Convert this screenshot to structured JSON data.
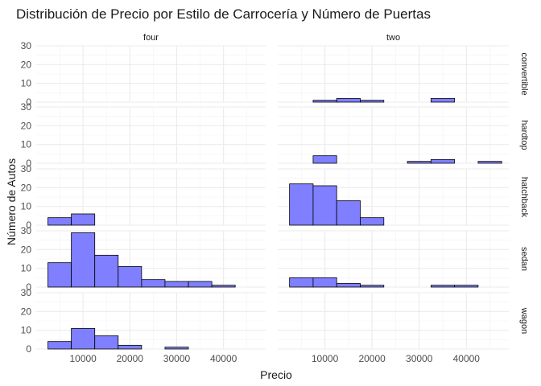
{
  "chart_data": {
    "type": "bar",
    "title": "Distribución de Precio por Estilo de Carrocería y Número de Puertas",
    "xlabel": "Precio",
    "ylabel": "Número de Autos",
    "column_facets": [
      "four",
      "two"
    ],
    "row_facets": [
      "convertible",
      "hardtop",
      "hatchback",
      "sedan",
      "wagon"
    ],
    "xlim": [
      0,
      49000
    ],
    "ylim": [
      0,
      30
    ],
    "x_ticks": [
      10000,
      20000,
      30000,
      40000
    ],
    "x_tick_labels": [
      "10000",
      "20000",
      "30000",
      "40000"
    ],
    "y_ticks": [
      0,
      10,
      20,
      30
    ],
    "y_tick_labels": [
      "0",
      "10",
      "20",
      "30"
    ],
    "bin_edges": [
      2500,
      7500,
      12500,
      17500,
      22500,
      27500,
      32500,
      37500,
      42500,
      47500
    ],
    "grid": true,
    "bar_fill": "#7f7fff",
    "bar_stroke": "#000000",
    "panels": [
      {
        "doors": "four",
        "body_style": "convertible",
        "counts": [
          0,
          0,
          0,
          0,
          0,
          0,
          0,
          0,
          0
        ]
      },
      {
        "doors": "two",
        "body_style": "convertible",
        "counts": [
          0,
          1,
          2,
          1,
          0,
          0,
          2,
          0,
          0
        ]
      },
      {
        "doors": "four",
        "body_style": "hardtop",
        "counts": [
          0,
          0,
          0,
          0,
          0,
          0,
          0,
          0,
          0
        ]
      },
      {
        "doors": "two",
        "body_style": "hardtop",
        "counts": [
          0,
          4,
          0,
          0,
          0,
          1,
          2,
          0,
          1
        ]
      },
      {
        "doors": "four",
        "body_style": "hatchback",
        "counts": [
          4,
          6,
          0,
          0,
          0,
          0,
          0,
          0,
          0
        ]
      },
      {
        "doors": "two",
        "body_style": "hatchback",
        "counts": [
          22,
          21,
          13,
          4,
          0,
          0,
          0,
          0,
          0
        ]
      },
      {
        "doors": "four",
        "body_style": "sedan",
        "counts": [
          13,
          29,
          17,
          11,
          4,
          3,
          3,
          1,
          0
        ]
      },
      {
        "doors": "two",
        "body_style": "sedan",
        "counts": [
          5,
          5,
          2,
          1,
          0,
          0,
          1,
          1,
          0
        ]
      },
      {
        "doors": "four",
        "body_style": "wagon",
        "counts": [
          4,
          11,
          7,
          2,
          0,
          1,
          0,
          0,
          0
        ]
      },
      {
        "doors": "two",
        "body_style": "wagon",
        "counts": [
          0,
          0,
          0,
          0,
          0,
          0,
          0,
          0,
          0
        ]
      }
    ]
  }
}
